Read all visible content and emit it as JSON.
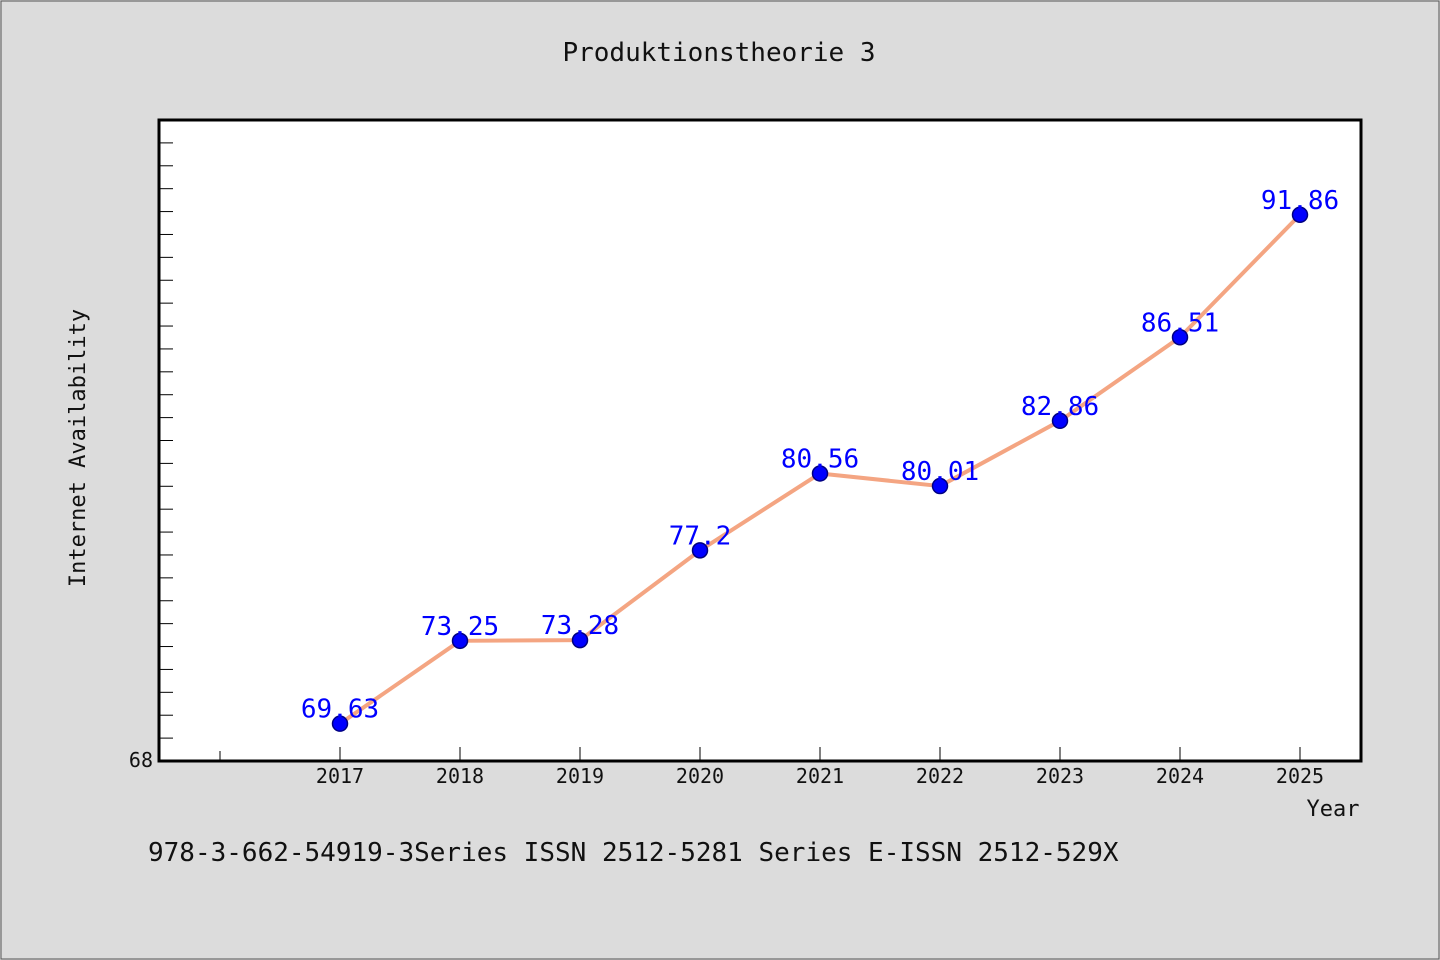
{
  "chart_data": {
    "type": "line",
    "title": "Produktionstheorie 3",
    "xlabel": "Year",
    "ylabel": "Internet Availability",
    "categories": [
      "2017",
      "2018",
      "2019",
      "2020",
      "2021",
      "2022",
      "2023",
      "2024",
      "2025"
    ],
    "series": [
      {
        "values": [
          69.63,
          73.25,
          73.28,
          77.2,
          80.56,
          80.01,
          82.86,
          86.51,
          91.86
        ],
        "data_labels": [
          "69.63",
          "73.25",
          "73.28",
          "77.2",
          "80.56",
          "80.01",
          "82.86",
          "86.51",
          "91.86"
        ]
      }
    ],
    "ylim": [
      68,
      96
    ],
    "y_tick_labels": [
      "68"
    ],
    "footer": "978-3-662-54919-3Series ISSN 2512-5281 Series E-ISSN 2512-529X",
    "grid": false,
    "legend": "none",
    "colors": {
      "background": "#dcdcdc",
      "plot_background": "#ffffff",
      "line": "#f4a582",
      "marker": "#0000ff",
      "marker_edge": "#000080",
      "data_label": "#0000ff",
      "axis": "#000000"
    }
  }
}
